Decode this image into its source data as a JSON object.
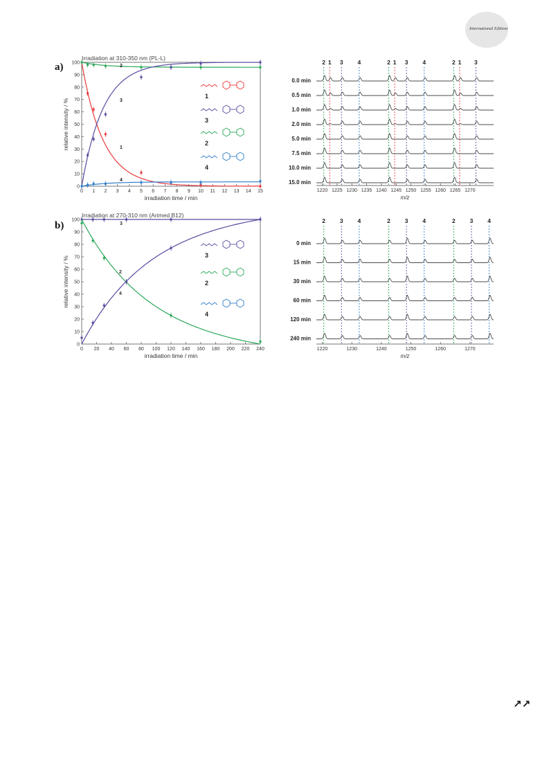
{
  "header": {
    "edition": "International Edition"
  },
  "footer": {
    "nav_icon": "double-arrow-icon"
  },
  "figure": {
    "panels": [
      "a)",
      "b)"
    ],
    "axis_labels": {
      "time_ylabel": "relative intensity / %",
      "time_xlabel": "irradiation time / min",
      "mz_xlabel": "m/z"
    }
  },
  "colors": {
    "c1": "#e8383a",
    "c2": "#2aa85a",
    "c3": "#5a4aa0",
    "c4": "#2f7dc8",
    "trace": "#4a4a4a"
  },
  "chart_data": [
    {
      "type": "line",
      "title": "Irradiation at 310-350 nm (PL-L)",
      "xlabel": "irradiation time / min",
      "ylabel": "relative intensity / %",
      "xlim": [
        0,
        15
      ],
      "ylim": [
        0,
        100
      ],
      "xticks": [
        0,
        1,
        2,
        3,
        4,
        5,
        6,
        7,
        8,
        9,
        10,
        11,
        12,
        13,
        14,
        15
      ],
      "yticks": [
        0,
        10,
        20,
        30,
        40,
        50,
        60,
        70,
        80,
        90,
        100
      ],
      "x": [
        0,
        0.5,
        1,
        2,
        5,
        7.5,
        10,
        15
      ],
      "series": [
        {
          "name": "1",
          "color": "#e8383a",
          "values": [
            100,
            75,
            62,
            42,
            11,
            3,
            1,
            0
          ],
          "fit": "exp_decay",
          "k": 0.55
        },
        {
          "name": "2",
          "color": "#2aa85a",
          "values": [
            100,
            98,
            98,
            97,
            96,
            96,
            96,
            96
          ],
          "fit": "plateau_decay",
          "plateau": 96,
          "k": 0.5
        },
        {
          "name": "3",
          "color": "#5a4aa0",
          "values": [
            0,
            25,
            38,
            58,
            88,
            96,
            99,
            100
          ],
          "fit": "exp_rise",
          "k": 0.55
        },
        {
          "name": "4",
          "color": "#2f7dc8",
          "values": [
            0,
            1,
            2,
            2,
            3,
            3,
            3,
            4
          ],
          "fit": "plateau_rise",
          "plateau": 3.5,
          "k": 0.5
        }
      ],
      "legend": [
        "1",
        "3",
        "2",
        "4"
      ]
    },
    {
      "type": "line",
      "title": "Irradiation at 270-310 nm (Arimed B12)",
      "xlabel": "irradiation time / min",
      "ylabel": "relative intensity / %",
      "xlim": [
        0,
        240
      ],
      "ylim": [
        0,
        100
      ],
      "xticks": [
        0,
        20,
        40,
        60,
        80,
        100,
        120,
        140,
        160,
        180,
        200,
        220,
        240
      ],
      "yticks": [
        0,
        10,
        20,
        30,
        40,
        50,
        60,
        70,
        80,
        90,
        100
      ],
      "x": [
        0,
        15,
        30,
        60,
        120,
        240
      ],
      "series": [
        {
          "name": "3",
          "color": "#5a4aa0",
          "values": [
            100,
            100,
            100,
            100,
            100,
            100
          ],
          "fit": "flat"
        },
        {
          "name": "2",
          "color": "#2aa85a",
          "values": [
            97,
            83,
            69,
            50,
            23,
            2
          ],
          "fit": "decay_to_zero"
        },
        {
          "name": "4",
          "color": "#5a4aa0",
          "values": [
            5,
            17,
            31,
            50,
            77,
            100
          ],
          "fit": "rise_to_full"
        }
      ],
      "legend": [
        "3",
        "2",
        "4"
      ]
    },
    {
      "type": "line",
      "title": "",
      "xlabel": "m/z",
      "xlim": [
        1218,
        1278
      ],
      "xticks": [
        1220,
        1225,
        1230,
        1235,
        1240,
        1245,
        1250,
        1255,
        1260,
        1265,
        1270
      ],
      "row_labels": [
        "0.0 min",
        "0.5 min",
        "1.0 min",
        "2.0 min",
        "5.0 min",
        "7.5 min",
        "10.0 min",
        "15.0 min"
      ],
      "markers": [
        {
          "label": "2",
          "mz": 1220.5,
          "color": "#2aa85a"
        },
        {
          "label": "1",
          "mz": 1222.5,
          "color": "#e8383a"
        },
        {
          "label": "3",
          "mz": 1226.5,
          "color": "#5a4aa0"
        },
        {
          "label": "4",
          "mz": 1232.5,
          "color": "#2f7dc8"
        },
        {
          "label": "2",
          "mz": 1242.5,
          "color": "#2aa85a"
        },
        {
          "label": "1",
          "mz": 1244.5,
          "color": "#e8383a"
        },
        {
          "label": "3",
          "mz": 1248.5,
          "color": "#5a4aa0"
        },
        {
          "label": "4",
          "mz": 1254.5,
          "color": "#2f7dc8"
        },
        {
          "label": "2",
          "mz": 1264.5,
          "color": "#2aa85a"
        },
        {
          "label": "1",
          "mz": 1266.5,
          "color": "#e8383a"
        },
        {
          "label": "3",
          "mz": 1272.0,
          "color": "#5a4aa0"
        }
      ]
    },
    {
      "type": "line",
      "title": "",
      "xlabel": "m/z",
      "xlim": [
        1218,
        1278
      ],
      "xticks": [
        1220,
        1230,
        1240,
        1250,
        1260,
        1270
      ],
      "row_labels": [
        "0 min",
        "15 min",
        "30 min",
        "60 min",
        "120 min",
        "240 min"
      ],
      "markers": [
        {
          "label": "2",
          "mz": 1220.5,
          "color": "#2aa85a"
        },
        {
          "label": "3",
          "mz": 1226.5,
          "color": "#5a4aa0"
        },
        {
          "label": "4",
          "mz": 1232.5,
          "color": "#2f7dc8"
        },
        {
          "label": "2",
          "mz": 1242.5,
          "color": "#2aa85a"
        },
        {
          "label": "3",
          "mz": 1248.5,
          "color": "#5a4aa0"
        },
        {
          "label": "4",
          "mz": 1254.5,
          "color": "#2f7dc8"
        },
        {
          "label": "2",
          "mz": 1264.5,
          "color": "#2aa85a"
        },
        {
          "label": "3",
          "mz": 1270.5,
          "color": "#5a4aa0"
        },
        {
          "label": "4",
          "mz": 1276.5,
          "color": "#2f7dc8"
        }
      ]
    }
  ]
}
